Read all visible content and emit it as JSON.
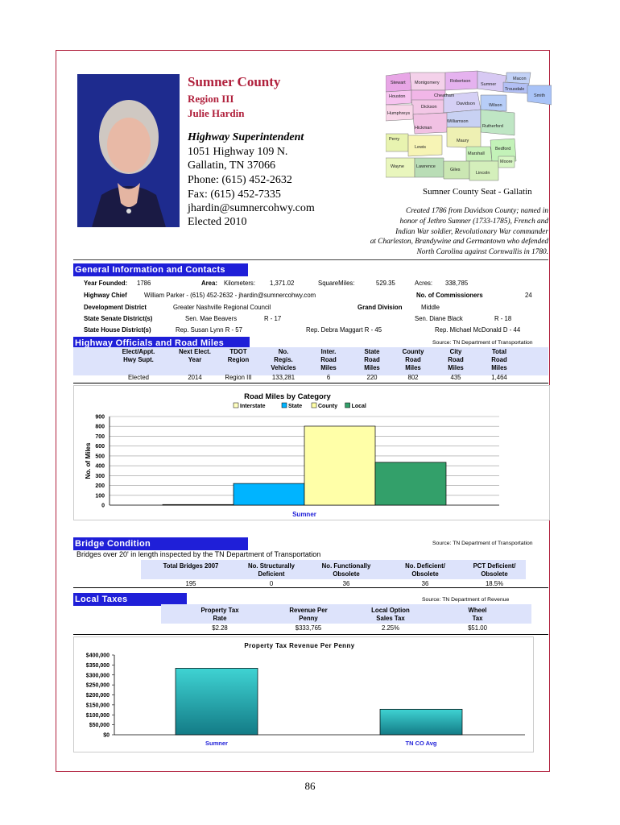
{
  "header": {
    "county": "Sumner County",
    "region": "Region III",
    "name": "Julie Hardin",
    "role": "Highway Superintendent",
    "address1": "1051 Highway 109 N.",
    "address2": "Gallatin, TN 37066",
    "phone": "Phone: (615) 452-2632",
    "fax": "Fax: (615) 452-7335",
    "email": "jhardin@sumnercohwy.com",
    "elected": "Elected 2010"
  },
  "map": {
    "caption": "Sumner County Seat - Gallatin",
    "counties": [
      "Stewart",
      "Montgomery",
      "Robertson",
      "Sumner",
      "Macon",
      "Trousdale",
      "Smith",
      "Houston",
      "Cheatham",
      "Dickson",
      "Davidson",
      "Wilson",
      "Humphreys",
      "Williamson",
      "Rutherford",
      "Hickman",
      "Perry",
      "Maury",
      "Lewis",
      "Marshall",
      "Bedford",
      "Wayne",
      "Lawrence",
      "Giles",
      "Lincoln",
      "Moore"
    ]
  },
  "history": {
    "line1": "Created 1786 from Davidson County; named in",
    "line2": "honor of Jethro Sumner (1733-1785), French and",
    "line3": "Indian War soldier, Revolutionary War commander",
    "line4": "at Charleston, Brandywine and Germantown who defended",
    "line5": "North Carolina against Cornwallis in 1780."
  },
  "general": {
    "section_title": "General Information and Contacts",
    "year_founded_label": "Year Founded:",
    "year_founded": "1786",
    "area_label": "Area:",
    "km_label": "Kilometers:",
    "km": "1,371.02",
    "sqmi_label": "SquareMiles:",
    "sqmi": "529.35",
    "acres_label": "Acres:",
    "acres": "338,785",
    "highway_chief_label": "Highway Chief",
    "highway_chief": "William Parker - (615) 452-2632 - jhardin@sumnercohwy.com",
    "commissioners_label": "No. of Commissioners",
    "commissioners": "24",
    "dev_district_label": "Development District",
    "dev_district": "Greater Nashville Regional Council",
    "grand_division_label": "Grand Division",
    "grand_division": "Middle",
    "senate_label": "State Senate District(s)",
    "senate1": "Sen. Mae Beavers",
    "senate1_d": "R - 17",
    "senate2": "Sen. Diane Black",
    "senate2_d": "R - 18",
    "house_label": "State House District(s)",
    "house1": "Rep. Susan Lynn R - 57",
    "house2": "Rep. Debra Maggart R - 45",
    "house3": "Rep. Michael McDonald D - 44"
  },
  "officials": {
    "section_title": "Highway Officials and Road Miles",
    "source": "Source:  TN Department of Transportation",
    "headers": [
      [
        "Elect/Appt.",
        "Hwy Supt."
      ],
      [
        "Next Elect.",
        "Year"
      ],
      [
        "TDOT",
        "Region"
      ],
      [
        "No.",
        "Regis.",
        "Vehicles"
      ],
      [
        "Inter.",
        "Road",
        "Miles"
      ],
      [
        "State",
        "Road",
        "Miles"
      ],
      [
        "County",
        "Road",
        "Miles"
      ],
      [
        "City",
        "Road",
        "Miles"
      ],
      [
        "Total",
        "Road",
        "Miles"
      ]
    ],
    "row": [
      "Elected",
      "2014",
      "Region III",
      "133,281",
      "6",
      "220",
      "802",
      "435",
      "1,464"
    ]
  },
  "chart_data": [
    {
      "type": "bar",
      "title": "Road Miles by Category",
      "ylabel": "No. of Miles",
      "xlabel": "Sumner",
      "categories": [
        "Sumner"
      ],
      "ylim": [
        0,
        900
      ],
      "yticks": [
        "900",
        "800",
        "700",
        "600",
        "500",
        "400",
        "300",
        "200",
        "100",
        "0"
      ],
      "legend": "top",
      "series": [
        {
          "name": "Interstate",
          "values": [
            6
          ],
          "color": "#ffffc0"
        },
        {
          "name": "State",
          "values": [
            220
          ],
          "color": "#00b4ff"
        },
        {
          "name": "County",
          "values": [
            802
          ],
          "color": "#ffffa8"
        },
        {
          "name": "Local",
          "values": [
            435
          ],
          "color": "#33a06a"
        }
      ]
    },
    {
      "type": "bar",
      "title": "Property Tax Revenue Per Penny",
      "categories": [
        "Sumner",
        "TN CO Avg"
      ],
      "values": [
        333765,
        128000
      ],
      "ylim": [
        0,
        400000
      ],
      "yticks": [
        "$400,000",
        "$350,000",
        "$300,000",
        "$250,000",
        "$200,000",
        "$150,000",
        "$100,000",
        "$50,000",
        "$0"
      ],
      "color": "#2ec0c0"
    }
  ],
  "bridge": {
    "section_title": "Bridge Condition",
    "source": "Source:  TN Department of Transportation",
    "subtitle": "Bridges over 20' in length inspected by the TN Department of Transportation",
    "headers": [
      [
        "Total Bridges 2007"
      ],
      [
        "No. Structurally",
        "Deficient"
      ],
      [
        "No. Functionally",
        "Obsolete"
      ],
      [
        "No. Deficient/",
        "Obsolete"
      ],
      [
        "PCT Deficient/",
        "Obsolete"
      ]
    ],
    "row": [
      "195",
      "0",
      "36",
      "36",
      "18.5%"
    ]
  },
  "taxes": {
    "section_title": "Local Taxes",
    "source": "Source:  TN Department of Revenue",
    "headers": [
      [
        "Property Tax",
        "Rate"
      ],
      [
        "Revenue Per",
        "Penny"
      ],
      [
        "Local Option",
        "Sales Tax"
      ],
      [
        "Wheel",
        "Tax"
      ]
    ],
    "row": [
      "$2.28",
      "$333,765",
      "2.25%",
      "$51.00"
    ]
  },
  "page_number": "86"
}
